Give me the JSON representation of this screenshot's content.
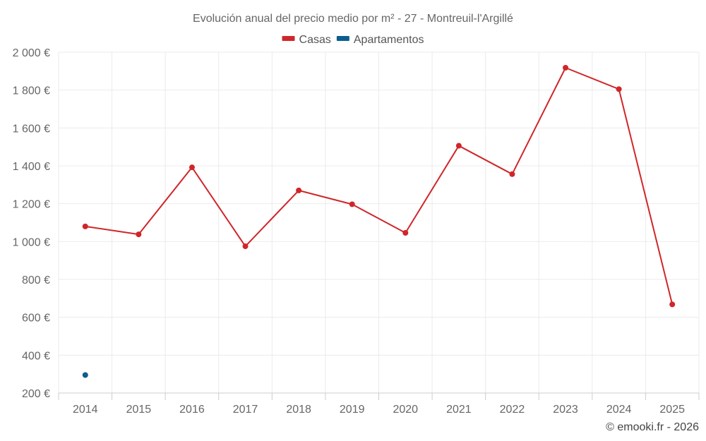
{
  "chart_data": {
    "type": "line",
    "title": "Evolución anual del precio medio por m² - 27 - Montreuil-l'Argillé",
    "categories": [
      "2014",
      "2015",
      "2016",
      "2017",
      "2018",
      "2019",
      "2020",
      "2021",
      "2022",
      "2023",
      "2024",
      "2025"
    ],
    "series": [
      {
        "name": "Casas",
        "color": "#d0262a",
        "values": [
          1080,
          1038,
          1392,
          975,
          1270,
          1197,
          1046,
          1506,
          1356,
          1918,
          1805,
          668
        ]
      },
      {
        "name": "Apartamentos",
        "color": "#0b5e8e",
        "values": [
          295,
          null,
          null,
          null,
          null,
          null,
          null,
          null,
          null,
          null,
          null,
          null
        ]
      }
    ],
    "ylim": [
      200,
      2000
    ],
    "yticks": [
      200,
      400,
      600,
      800,
      1000,
      1200,
      1400,
      1600,
      1800,
      2000
    ],
    "ytick_labels": [
      "200 €",
      "400 €",
      "600 €",
      "800 €",
      "1 000 €",
      "1 200 €",
      "1 400 €",
      "1 600 €",
      "1 800 €",
      "2 000 €"
    ],
    "xlabel": "",
    "ylabel": "",
    "grid": true,
    "legend_position": "top-center"
  },
  "credit": "© emooki.fr - 2026"
}
